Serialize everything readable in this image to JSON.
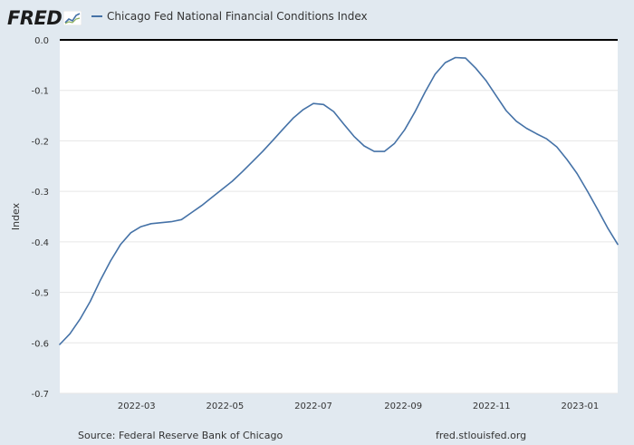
{
  "header": {
    "logo_text": "FRED",
    "legend_label": "Chicago Fed National Financial Conditions Index"
  },
  "footer": {
    "source": "Source: Federal Reserve Bank of Chicago",
    "url": "fred.stlouisfed.org"
  },
  "colors": {
    "series": "#4572a7",
    "background": "#e1e9f0",
    "plot_background": "#ffffff",
    "zero_line": "#000000"
  },
  "chart_data": {
    "type": "line",
    "title": "",
    "xlabel": "",
    "ylabel": "Index",
    "ylim": [
      -0.7,
      0.0
    ],
    "xlim": [
      "2022-01-07",
      "2023-01-27"
    ],
    "grid": true,
    "legend_position": "top",
    "x_ticks": [
      "2022-03",
      "2022-05",
      "2022-07",
      "2022-09",
      "2022-11",
      "2023-01"
    ],
    "y_ticks": [
      0.0,
      -0.1,
      -0.2,
      -0.3,
      -0.4,
      -0.5,
      -0.6,
      -0.7
    ],
    "y_tick_labels": [
      "0.0",
      "-0.1",
      "-0.2",
      "-0.3",
      "-0.4",
      "-0.5",
      "-0.6",
      "-0.7"
    ],
    "series": [
      {
        "name": "Chicago Fed National Financial Conditions Index",
        "x": [
          "2022-01-07",
          "2022-01-14",
          "2022-01-21",
          "2022-01-28",
          "2022-02-04",
          "2022-02-11",
          "2022-02-18",
          "2022-02-25",
          "2022-03-04",
          "2022-03-11",
          "2022-03-18",
          "2022-03-25",
          "2022-04-01",
          "2022-04-08",
          "2022-04-15",
          "2022-04-22",
          "2022-04-29",
          "2022-05-06",
          "2022-05-13",
          "2022-05-20",
          "2022-05-27",
          "2022-06-03",
          "2022-06-10",
          "2022-06-17",
          "2022-06-24",
          "2022-07-01",
          "2022-07-08",
          "2022-07-15",
          "2022-07-22",
          "2022-07-29",
          "2022-08-05",
          "2022-08-12",
          "2022-08-19",
          "2022-08-26",
          "2022-09-02",
          "2022-09-09",
          "2022-09-16",
          "2022-09-23",
          "2022-09-30",
          "2022-10-07",
          "2022-10-14",
          "2022-10-21",
          "2022-10-28",
          "2022-11-04",
          "2022-11-11",
          "2022-11-18",
          "2022-11-25",
          "2022-12-02",
          "2022-12-09",
          "2022-12-16",
          "2022-12-23",
          "2022-12-30",
          "2023-01-06",
          "2023-01-13",
          "2023-01-20",
          "2023-01-27"
        ],
        "values": [
          -0.603,
          -0.582,
          -0.553,
          -0.518,
          -0.476,
          -0.438,
          -0.405,
          -0.382,
          -0.37,
          -0.364,
          -0.362,
          -0.36,
          -0.356,
          -0.342,
          -0.328,
          -0.312,
          -0.296,
          -0.28,
          -0.261,
          -0.241,
          -0.221,
          -0.199,
          -0.177,
          -0.155,
          -0.138,
          -0.126,
          -0.128,
          -0.142,
          -0.167,
          -0.191,
          -0.21,
          -0.221,
          -0.221,
          -0.205,
          -0.178,
          -0.143,
          -0.104,
          -0.068,
          -0.045,
          -0.035,
          -0.036,
          -0.056,
          -0.08,
          -0.11,
          -0.14,
          -0.161,
          -0.175,
          -0.186,
          -0.196,
          -0.212,
          -0.237,
          -0.265,
          -0.299,
          -0.335,
          -0.372,
          -0.405
        ]
      }
    ]
  }
}
